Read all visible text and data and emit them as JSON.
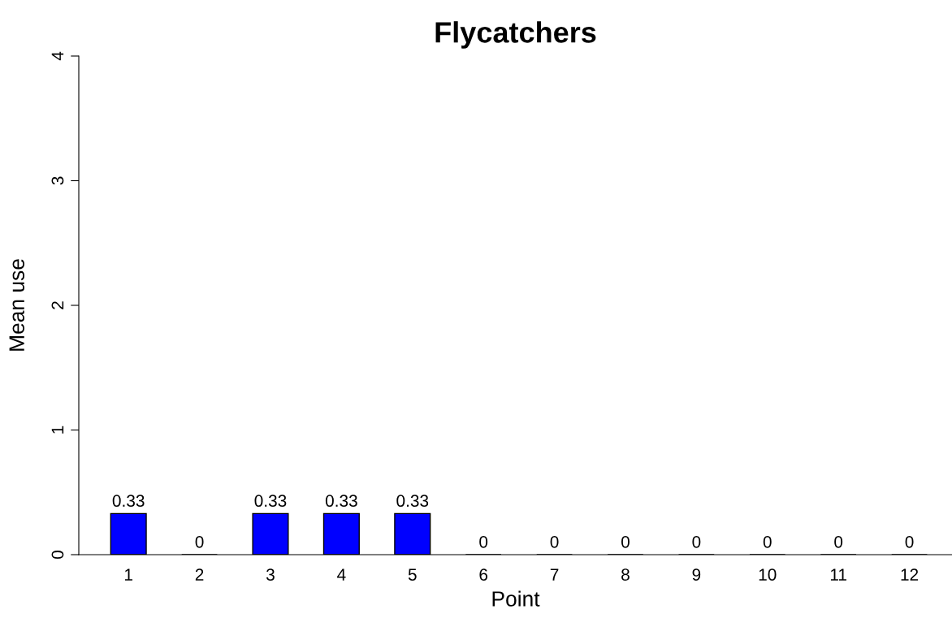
{
  "chart_data": {
    "type": "bar",
    "title": "Flycatchers",
    "xlabel": "Point",
    "ylabel": "Mean use",
    "categories": [
      "1",
      "2",
      "3",
      "4",
      "5",
      "6",
      "7",
      "8",
      "9",
      "10",
      "11",
      "12"
    ],
    "values": [
      0.33,
      0,
      0.33,
      0.33,
      0.33,
      0,
      0,
      0,
      0,
      0,
      0,
      0
    ],
    "colors": [
      "#0000ff",
      "#000000",
      "#0000ff",
      "#0000ff",
      "#0000ff",
      "#000000",
      "#000000",
      "#000000",
      "#000000",
      "#000000",
      "#000000",
      "#000000"
    ],
    "ylim": [
      0,
      4
    ],
    "yticks": [
      0,
      1,
      2,
      3,
      4
    ],
    "grid": false,
    "data_labels": true
  }
}
